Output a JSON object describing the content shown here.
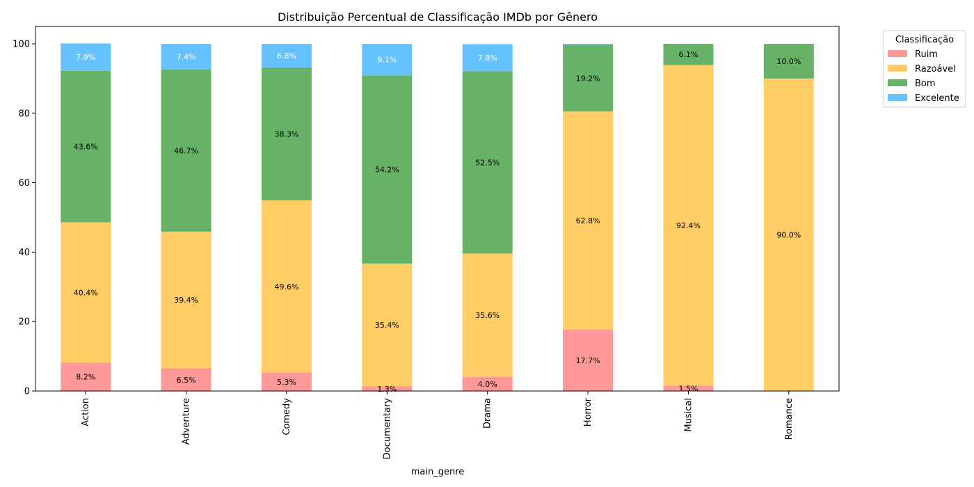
{
  "chart_data": {
    "type": "bar",
    "stacked": true,
    "title": "Distribuição Percentual de Classificação IMDb por Gênero",
    "xlabel": "main_genre",
    "ylabel": "",
    "ylim": [
      0,
      105
    ],
    "yticks": [
      "0",
      "20",
      "40",
      "60",
      "80",
      "100"
    ],
    "categories": [
      "Action",
      "Adventure",
      "Comedy",
      "Documentary",
      "Drama",
      "Horror",
      "Musical",
      "Romance"
    ],
    "series": [
      {
        "name": "Ruim",
        "color": "#ff9999",
        "values": [
          8.2,
          6.5,
          5.3,
          1.3,
          4.0,
          17.7,
          1.5,
          0
        ],
        "labels": [
          "8.2%",
          "6.5%",
          "5.3%",
          "1.3%",
          "4.0%",
          "17.7%",
          "1.5%",
          ""
        ],
        "label_color": "#000000"
      },
      {
        "name": "Razoável",
        "color": "#ffcc66",
        "values": [
          40.4,
          39.4,
          49.6,
          35.4,
          35.6,
          62.8,
          92.4,
          90.0
        ],
        "labels": [
          "40.4%",
          "39.4%",
          "49.6%",
          "35.4%",
          "35.6%",
          "62.8%",
          "92.4%",
          "90.0%"
        ],
        "label_color": "#000000"
      },
      {
        "name": "Bom",
        "color": "#66b266",
        "values": [
          43.6,
          46.7,
          38.3,
          54.2,
          52.5,
          19.2,
          6.1,
          10.0
        ],
        "labels": [
          "43.6%",
          "46.7%",
          "38.3%",
          "54.2%",
          "52.5%",
          "19.2%",
          "6.1%",
          "10.0%"
        ],
        "label_color": "#000000"
      },
      {
        "name": "Excelente",
        "color": "#66c2ff",
        "values": [
          7.9,
          7.4,
          6.8,
          9.1,
          7.8,
          0.3,
          0,
          0
        ],
        "labels": [
          "7.9%",
          "7.4%",
          "6.8%",
          "9.1%",
          "7.8%",
          "",
          "",
          ""
        ],
        "label_color": "#ffffff"
      }
    ],
    "grid": false,
    "legend": {
      "title": "Classificação",
      "placement": "outside-top-right"
    }
  }
}
